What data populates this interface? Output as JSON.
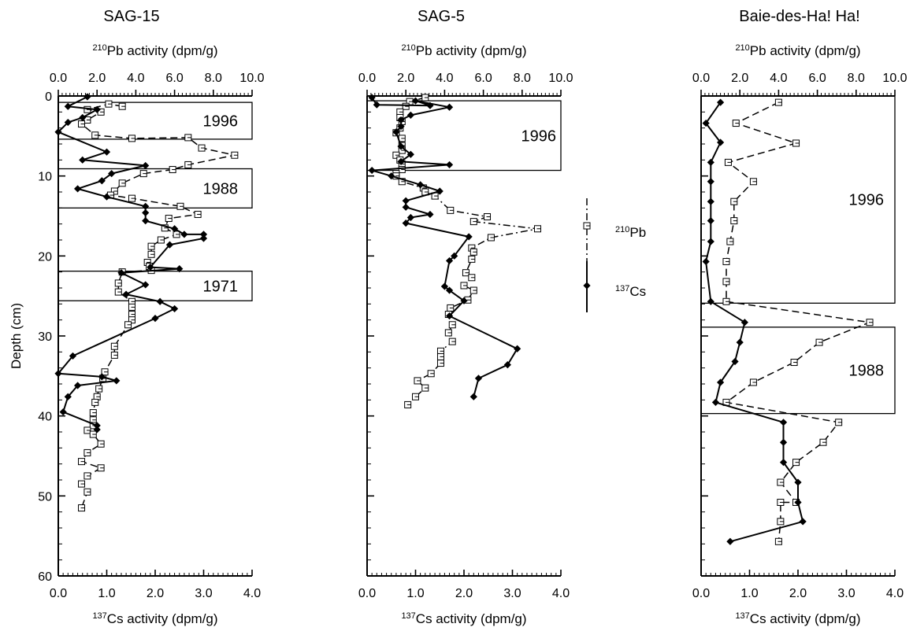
{
  "chart_data": [
    {
      "type": "line",
      "title": "SAG-15",
      "ylabel": "Depth (cm)",
      "ylim": [
        60,
        0
      ],
      "yticks": [
        "0",
        "10",
        "20",
        "30",
        "40",
        "50",
        "60"
      ],
      "x_top": {
        "label_sup": "210",
        "label": "Pb activity (dpm/g)",
        "range": [
          0,
          10
        ],
        "ticks": [
          "0.0",
          "2.0",
          "4.0",
          "6.0",
          "8.0",
          "10.0"
        ]
      },
      "x_bottom": {
        "label_sup": "137",
        "label": "Cs activity (dpm/g)",
        "range": [
          0,
          4
        ],
        "ticks": [
          "0.0",
          "1.0",
          "2.0",
          "3.0",
          "4.0"
        ]
      },
      "series": [
        {
          "name": "210Pb",
          "axis": "top",
          "style": "dash",
          "marker": "square",
          "points": [
            [
              3.3,
              1.3
            ],
            [
              2.6,
              1.0
            ],
            [
              1.5,
              1.7
            ],
            [
              2.2,
              2.0
            ],
            [
              1.5,
              3.0
            ],
            [
              1.2,
              3.5
            ],
            [
              1.9,
              4.9
            ],
            [
              3.8,
              5.3
            ],
            [
              6.7,
              5.2
            ],
            [
              7.4,
              6.5
            ],
            [
              9.1,
              7.4
            ],
            [
              6.7,
              8.6
            ],
            [
              5.9,
              9.2
            ],
            [
              4.4,
              9.7
            ],
            [
              3.3,
              10.9
            ],
            [
              2.9,
              11.9
            ],
            [
              2.7,
              12.4
            ],
            [
              3.8,
              12.8
            ],
            [
              6.3,
              13.8
            ],
            [
              7.2,
              14.8
            ],
            [
              5.7,
              15.3
            ],
            [
              5.5,
              16.5
            ],
            [
              6.1,
              17.3
            ],
            [
              5.3,
              18.0
            ],
            [
              4.8,
              18.8
            ],
            [
              4.8,
              19.8
            ],
            [
              4.6,
              20.8
            ],
            [
              4.7,
              21.3
            ],
            [
              4.8,
              21.8
            ],
            [
              3.3,
              22.0
            ],
            [
              3.1,
              23.4
            ],
            [
              3.1,
              24.5
            ],
            [
              3.8,
              25.7
            ],
            [
              3.8,
              26.4
            ],
            [
              3.8,
              27.3
            ],
            [
              3.8,
              28.0
            ],
            [
              3.6,
              28.6
            ],
            [
              2.9,
              31.3
            ],
            [
              2.9,
              32.4
            ],
            [
              2.4,
              34.5
            ],
            [
              2.3,
              35.3
            ],
            [
              2.1,
              36.6
            ],
            [
              2.0,
              37.6
            ],
            [
              1.9,
              38.3
            ],
            [
              1.8,
              39.6
            ],
            [
              1.8,
              40.5
            ],
            [
              1.8,
              41.2
            ],
            [
              1.5,
              41.8
            ],
            [
              1.8,
              42.3
            ],
            [
              2.2,
              43.5
            ],
            [
              1.5,
              44.6
            ],
            [
              1.2,
              45.7
            ],
            [
              2.2,
              46.5
            ],
            [
              1.5,
              47.5
            ],
            [
              1.2,
              48.5
            ],
            [
              1.5,
              49.5
            ],
            [
              1.2,
              51.5
            ]
          ]
        },
        {
          "name": "137Cs",
          "axis": "bottom",
          "style": "solid",
          "marker": "diamond",
          "points": [
            [
              0.6,
              0.1
            ],
            [
              0.2,
              1.3
            ],
            [
              0.8,
              1.7
            ],
            [
              0.5,
              2.7
            ],
            [
              0.2,
              3.3
            ],
            [
              0.0,
              4.5
            ],
            [
              1.0,
              7.0
            ],
            [
              0.5,
              8.0
            ],
            [
              1.8,
              8.7
            ],
            [
              1.1,
              9.7
            ],
            [
              0.9,
              10.6
            ],
            [
              0.4,
              11.6
            ],
            [
              1.0,
              12.6
            ],
            [
              1.8,
              13.8
            ],
            [
              1.8,
              14.6
            ],
            [
              1.8,
              15.6
            ],
            [
              2.4,
              16.6
            ],
            [
              2.6,
              17.3
            ],
            [
              3.0,
              17.3
            ],
            [
              3.0,
              17.8
            ],
            [
              2.3,
              18.6
            ],
            [
              1.9,
              21.4
            ],
            [
              2.5,
              21.6
            ],
            [
              1.3,
              22.1
            ],
            [
              1.8,
              23.6
            ],
            [
              1.4,
              24.8
            ],
            [
              2.1,
              25.7
            ],
            [
              2.4,
              26.6
            ],
            [
              2.0,
              27.8
            ],
            [
              0.3,
              32.5
            ],
            [
              0.0,
              34.7
            ],
            [
              0.9,
              35.1
            ],
            [
              1.2,
              35.6
            ],
            [
              0.4,
              36.2
            ],
            [
              0.2,
              37.6
            ],
            [
              0.1,
              39.5
            ],
            [
              0.8,
              41.2
            ],
            [
              0.8,
              41.7
            ]
          ]
        }
      ],
      "date_boxes": [
        {
          "label": "1996",
          "top": 0.8,
          "bottom": 5.4
        },
        {
          "label": "1988",
          "top": 9.1,
          "bottom": 14.0
        },
        {
          "label": "1971",
          "top": 21.9,
          "bottom": 25.6
        }
      ]
    },
    {
      "type": "line",
      "title": "SAG-5",
      "ylim": [
        60,
        0
      ],
      "x_top": {
        "label_sup": "210",
        "label": "Pb activity (dpm/g)",
        "range": [
          0,
          10
        ],
        "ticks": [
          "0.0",
          "2.0",
          "4.0",
          "6.0",
          "8.0",
          "10.0"
        ]
      },
      "x_bottom": {
        "label_sup": "137",
        "label": "Cs activity (dpm/g)",
        "range": [
          0,
          4
        ],
        "ticks": [
          "0.0",
          "1.0",
          "2.0",
          "3.0",
          "4.0"
        ]
      },
      "series": [
        {
          "name": "210Pb",
          "axis": "top",
          "style": "dashdot",
          "marker": "square",
          "points": [
            [
              3.0,
              0.2
            ],
            [
              2.2,
              0.7
            ],
            [
              2.0,
              1.3
            ],
            [
              1.7,
              2.0
            ],
            [
              1.7,
              2.7
            ],
            [
              1.8,
              3.2
            ],
            [
              1.7,
              4.0
            ],
            [
              1.5,
              4.6
            ],
            [
              1.8,
              5.3
            ],
            [
              1.8,
              6.2
            ],
            [
              1.8,
              6.8
            ],
            [
              1.5,
              7.4
            ],
            [
              1.7,
              8.0
            ],
            [
              1.8,
              8.5
            ],
            [
              1.8,
              9.2
            ],
            [
              1.5,
              9.7
            ],
            [
              1.5,
              10.0
            ],
            [
              1.8,
              10.7
            ],
            [
              2.9,
              11.5
            ],
            [
              3.0,
              12.0
            ],
            [
              3.5,
              12.5
            ],
            [
              4.3,
              14.3
            ],
            [
              6.2,
              15.1
            ],
            [
              5.5,
              15.7
            ],
            [
              8.8,
              16.6
            ],
            [
              6.4,
              17.7
            ],
            [
              5.4,
              19.0
            ],
            [
              5.5,
              19.5
            ],
            [
              5.4,
              20.4
            ],
            [
              5.1,
              22.1
            ],
            [
              5.4,
              22.7
            ],
            [
              5.0,
              23.7
            ],
            [
              5.5,
              24.3
            ],
            [
              5.2,
              25.5
            ],
            [
              4.3,
              26.5
            ],
            [
              4.2,
              27.3
            ],
            [
              4.4,
              28.6
            ],
            [
              4.2,
              29.6
            ],
            [
              4.4,
              30.7
            ],
            [
              3.8,
              31.9
            ],
            [
              3.8,
              32.6
            ],
            [
              3.8,
              33.4
            ],
            [
              3.3,
              34.7
            ],
            [
              2.6,
              35.6
            ],
            [
              3.0,
              36.5
            ],
            [
              2.5,
              37.6
            ],
            [
              2.1,
              38.6
            ]
          ]
        },
        {
          "name": "137Cs",
          "axis": "bottom",
          "style": "solid",
          "marker": "diamond",
          "points": [
            [
              0.1,
              0.2
            ],
            [
              0.2,
              1.1
            ],
            [
              1.3,
              1.2
            ],
            [
              1.0,
              0.6
            ],
            [
              1.7,
              1.4
            ],
            [
              0.9,
              2.4
            ],
            [
              0.7,
              3.0
            ],
            [
              0.7,
              3.8
            ],
            [
              0.6,
              4.5
            ],
            [
              0.7,
              6.3
            ],
            [
              0.9,
              7.3
            ],
            [
              0.7,
              8.2
            ],
            [
              1.7,
              8.6
            ],
            [
              0.1,
              9.3
            ],
            [
              0.5,
              10.0
            ],
            [
              1.1,
              11.1
            ],
            [
              1.5,
              11.9
            ],
            [
              0.8,
              13.1
            ],
            [
              0.8,
              13.9
            ],
            [
              1.3,
              14.8
            ],
            [
              0.9,
              15.2
            ],
            [
              0.8,
              15.9
            ],
            [
              2.1,
              17.6
            ],
            [
              1.8,
              20.0
            ],
            [
              1.7,
              20.6
            ],
            [
              1.6,
              23.8
            ],
            [
              1.7,
              24.3
            ],
            [
              2.0,
              25.6
            ],
            [
              1.7,
              27.5
            ],
            [
              3.1,
              31.6
            ],
            [
              2.9,
              33.6
            ],
            [
              2.3,
              35.3
            ],
            [
              2.2,
              37.6
            ]
          ]
        }
      ],
      "date_boxes": [
        {
          "label": "1996",
          "top": 0.6,
          "bottom": 9.3
        }
      ],
      "legend": [
        {
          "label_sup": "210",
          "label": "Pb"
        },
        {
          "label_sup": "137",
          "label": "Cs"
        }
      ]
    },
    {
      "type": "line",
      "title": "Baie-des-Ha! Ha!",
      "ylim": [
        60,
        0
      ],
      "x_top": {
        "label_sup": "210",
        "label": "Pb activity (dpm/g)",
        "range": [
          0,
          10
        ],
        "ticks": [
          "0.0",
          "2.0",
          "4.0",
          "6.0",
          "8.0",
          "10.0"
        ]
      },
      "x_bottom": {
        "label_sup": "137",
        "label": "Cs activity (dpm/g)",
        "range": [
          0,
          4
        ],
        "ticks": [
          "0.0",
          "1.0",
          "2.0",
          "3.0",
          "4.0"
        ]
      },
      "series": [
        {
          "name": "210Pb",
          "axis": "top",
          "style": "dash",
          "marker": "square",
          "points": [
            [
              4.0,
              0.8
            ],
            [
              1.8,
              3.4
            ],
            [
              4.9,
              5.9
            ],
            [
              1.4,
              8.3
            ],
            [
              2.7,
              10.7
            ],
            [
              1.7,
              13.2
            ],
            [
              1.7,
              15.6
            ],
            [
              1.5,
              18.2
            ],
            [
              1.3,
              20.7
            ],
            [
              1.3,
              23.2
            ],
            [
              1.3,
              25.7
            ],
            [
              8.7,
              28.3
            ],
            [
              6.1,
              30.8
            ],
            [
              4.8,
              33.3
            ],
            [
              2.7,
              35.8
            ],
            [
              1.3,
              38.3
            ],
            [
              7.1,
              40.8
            ],
            [
              6.3,
              43.3
            ],
            [
              4.9,
              45.8
            ],
            [
              4.1,
              48.3
            ],
            [
              4.9,
              50.8
            ],
            [
              4.1,
              50.8
            ],
            [
              4.1,
              53.2
            ],
            [
              4.0,
              55.7
            ]
          ]
        },
        {
          "name": "137Cs",
          "axis": "bottom",
          "style": "solid",
          "marker": "diamond",
          "points": [
            [
              0.4,
              0.8
            ],
            [
              0.1,
              3.4
            ],
            [
              0.4,
              5.8
            ],
            [
              0.2,
              8.3
            ],
            [
              0.2,
              10.7
            ],
            [
              0.2,
              13.2
            ],
            [
              0.2,
              15.6
            ],
            [
              0.2,
              18.2
            ],
            [
              0.1,
              20.7
            ],
            [
              0.2,
              25.7
            ],
            [
              0.9,
              28.3
            ],
            [
              0.8,
              30.8
            ],
            [
              0.7,
              33.2
            ],
            [
              0.4,
              35.8
            ],
            [
              0.3,
              38.3
            ],
            [
              1.7,
              40.8
            ],
            [
              1.7,
              43.3
            ],
            [
              1.7,
              45.8
            ],
            [
              2.0,
              48.3
            ],
            [
              2.0,
              50.8
            ],
            [
              2.1,
              53.2
            ],
            [
              0.6,
              55.7
            ]
          ]
        }
      ],
      "date_boxes": [
        {
          "label": "1996",
          "top": 0.0,
          "bottom": 25.9
        },
        {
          "label": "1988",
          "top": 28.9,
          "bottom": 39.7
        }
      ]
    }
  ]
}
